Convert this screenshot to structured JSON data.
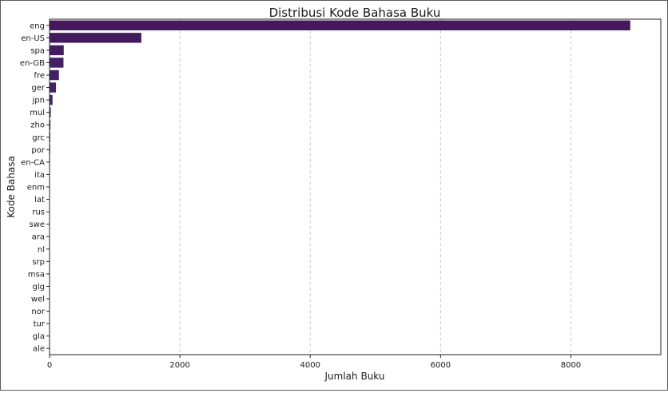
{
  "chart_data": {
    "type": "bar",
    "orientation": "horizontal",
    "title": "Distribusi Kode Bahasa Buku",
    "xlabel": "Jumlah Buku",
    "ylabel": "Kode Bahasa",
    "categories": [
      "eng",
      "en-US",
      "spa",
      "en-GB",
      "fre",
      "ger",
      "jpn",
      "mul",
      "zho",
      "grc",
      "por",
      "en-CA",
      "ita",
      "enm",
      "lat",
      "rus",
      "swe",
      "ara",
      "nl",
      "srp",
      "msa",
      "glg",
      "wel",
      "nor",
      "tur",
      "gla",
      "ale"
    ],
    "values": [
      8911,
      1409,
      218,
      214,
      144,
      99,
      46,
      19,
      14,
      11,
      10,
      7,
      5,
      3,
      3,
      2,
      2,
      1,
      1,
      1,
      1,
      1,
      1,
      1,
      1,
      1,
      1
    ],
    "xlim": [
      0,
      9380
    ],
    "xticks": [
      0,
      2000,
      4000,
      6000,
      8000
    ],
    "grid": "x, dashed",
    "colors": {
      "first": "#45175c",
      "last": "#32618d",
      "grid": "#c9c9c9",
      "axis": "#222222"
    }
  }
}
